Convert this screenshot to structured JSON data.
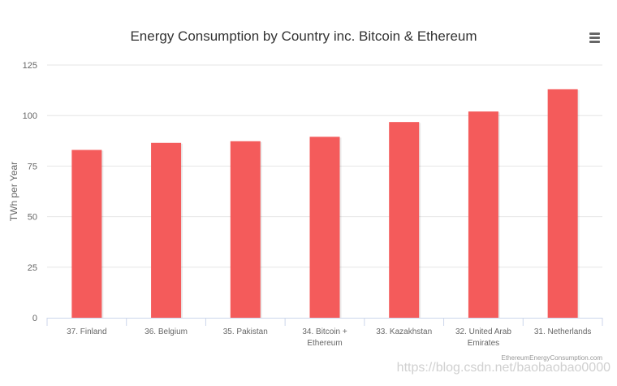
{
  "chart_data": {
    "type": "bar",
    "title": "Energy Consumption by Country inc. Bitcoin & Ethereum",
    "ylabel": "TWh per Year",
    "xlabel": "",
    "categories": [
      [
        "37. Finland"
      ],
      [
        "36. Belgium"
      ],
      [
        "35. Pakistan"
      ],
      [
        "34. Bitcoin +",
        "Ethereum"
      ],
      [
        "33. Kazakhstan"
      ],
      [
        "32. United Arab",
        "Emirates"
      ],
      [
        "31. Netherlands"
      ]
    ],
    "values": [
      83,
      86.5,
      87.3,
      89.5,
      96.8,
      102,
      113
    ],
    "ylim": [
      0,
      125
    ],
    "yticks": [
      "0",
      "25",
      "50",
      "75",
      "100",
      "125"
    ],
    "grid": true,
    "legend": "none",
    "credits": "EthereumEnergyConsumption.com",
    "colors": {
      "bar": "#f45b5b",
      "grid": "#e6e6e6",
      "axis": "#ccd6eb",
      "text": "#666666",
      "title": "#333333"
    }
  },
  "menu": {
    "icon": "hamburger-menu-icon"
  },
  "watermark": "https://blog.csdn.net/baobaobao0000"
}
